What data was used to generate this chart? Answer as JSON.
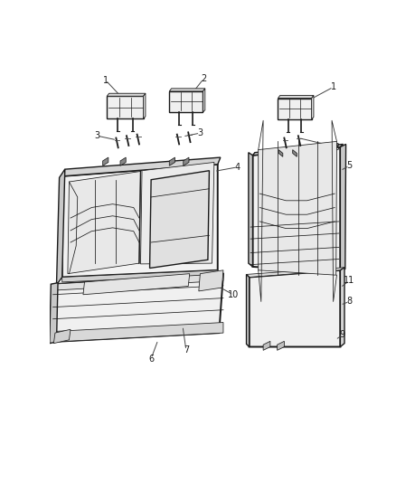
{
  "bg_color": "#ffffff",
  "line_color": "#1a1a1a",
  "label_color": "#1a1a1a",
  "callout_color": "#444444",
  "lw_main": 1.0,
  "lw_thick": 1.4,
  "lw_thin": 0.55,
  "label_fontsize": 7.0
}
